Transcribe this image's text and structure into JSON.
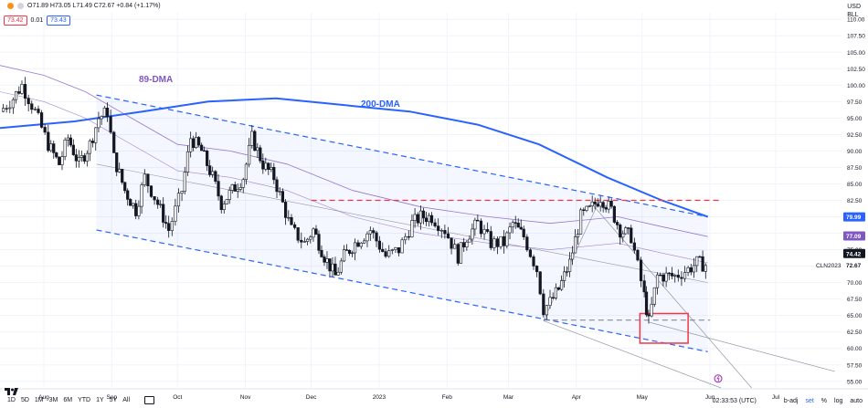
{
  "header": {
    "ohlc": "O71.89 H73.05 L71.49 C72.67 +0.84 (+1.17%)",
    "bid": "73.42",
    "spread": "0.01",
    "ask": "73.43",
    "currency": "USD",
    "unit": "BLL"
  },
  "labels": {
    "dma89": "89-DMA",
    "dma200": "200-DMA",
    "symbol": "CLN2023"
  },
  "bottom": {
    "timeframes": [
      "1D",
      "5D",
      "1M",
      "3M",
      "6M",
      "YTD",
      "1Y",
      "5Y",
      "All"
    ],
    "time": "02:33:53 (UTC)",
    "badj": "b-adj",
    "set": "set",
    "pct": "%",
    "log": "log",
    "auto": "auto"
  },
  "colors": {
    "up": "#26a69a",
    "down": "#ef5350",
    "candle": "#131722",
    "dma200": "#2962ff",
    "dma89": "#7e57c2",
    "channel": "#2962ff",
    "resistance": "#f23645",
    "box": "#f23645"
  },
  "chart_data": {
    "type": "line",
    "title": "",
    "xlabel": "",
    "ylabel": "",
    "ylim": [
      54,
      111
    ],
    "y_ticks": [
      55.0,
      57.5,
      60.0,
      62.5,
      65.0,
      67.5,
      70.0,
      72.5,
      75.0,
      77.5,
      80.0,
      82.5,
      85.0,
      87.5,
      90.0,
      92.5,
      95.0,
      97.5,
      100.0,
      102.5,
      105.0,
      107.5,
      110.0
    ],
    "y_tick_labels": [
      "55.00",
      "57.50",
      "60.00",
      "62.50",
      "65.00",
      "67.50",
      "70.00",
      "72.50",
      "75.00",
      "77.50",
      "80.00",
      "82.50",
      "85.00",
      "87.50",
      "90.00",
      "92.50",
      "95.00",
      "97.50",
      "100.00",
      "102.50",
      "105.00",
      "107.50",
      "110.00"
    ],
    "x_ticks": [
      "Aug",
      "Sep",
      "Oct",
      "Nov",
      "Dec",
      "2023",
      "Feb",
      "Mar",
      "Apr",
      "May",
      "Jun",
      "Jul"
    ],
    "x_tick_dates": [
      "2022-08-01",
      "2022-09-01",
      "2022-10-01",
      "2022-11-01",
      "2022-12-01",
      "2023-01-01",
      "2023-02-01",
      "2023-03-01",
      "2023-04-01",
      "2023-05-01",
      "2023-06-01",
      "2023-07-01"
    ],
    "x_range": [
      "2022-07-12",
      "2023-07-31"
    ],
    "price_labels": [
      {
        "value": 79.99,
        "text": "79.99",
        "color": "#2962ff"
      },
      {
        "value": 77.09,
        "text": "77.09",
        "color": "#7e57c2"
      },
      {
        "value": 74.42,
        "text": "74.42",
        "color": "#131722"
      },
      {
        "value": 72.67,
        "text": "72.67",
        "color": "#ffffff"
      }
    ],
    "close_series": {
      "name": "",
      "points": [
        [
          "2022-07-12",
          96
        ],
        [
          "2022-07-18",
          98
        ],
        [
          "2022-07-22",
          100
        ],
        [
          "2022-07-28",
          96
        ],
        [
          "2022-08-03",
          91
        ],
        [
          "2022-08-08",
          88
        ],
        [
          "2022-08-12",
          92
        ],
        [
          "2022-08-17",
          88
        ],
        [
          "2022-08-22",
          91
        ],
        [
          "2022-08-26",
          95
        ],
        [
          "2022-08-30",
          96
        ],
        [
          "2022-09-02",
          89
        ],
        [
          "2022-09-07",
          84
        ],
        [
          "2022-09-12",
          81
        ],
        [
          "2022-09-16",
          86
        ],
        [
          "2022-09-22",
          82
        ],
        [
          "2022-09-27",
          78
        ],
        [
          "2022-10-03",
          84
        ],
        [
          "2022-10-07",
          92
        ],
        [
          "2022-10-12",
          90
        ],
        [
          "2022-10-17",
          86
        ],
        [
          "2022-10-21",
          82
        ],
        [
          "2022-10-26",
          84
        ],
        [
          "2022-10-31",
          86
        ],
        [
          "2022-11-04",
          92
        ],
        [
          "2022-11-09",
          88
        ],
        [
          "2022-11-14",
          86
        ],
        [
          "2022-11-18",
          82
        ],
        [
          "2022-11-22",
          78
        ],
        [
          "2022-11-28",
          76
        ],
        [
          "2022-12-02",
          78
        ],
        [
          "2022-12-07",
          74
        ],
        [
          "2022-12-12",
          71
        ],
        [
          "2022-12-16",
          74
        ],
        [
          "2022-12-21",
          76
        ],
        [
          "2022-12-28",
          78
        ],
        [
          "2023-01-04",
          74
        ],
        [
          "2023-01-10",
          75
        ],
        [
          "2023-01-16",
          79
        ],
        [
          "2023-01-20",
          80
        ],
        [
          "2023-01-25",
          80
        ],
        [
          "2023-01-31",
          78
        ],
        [
          "2023-02-06",
          74
        ],
        [
          "2023-02-10",
          77
        ],
        [
          "2023-02-15",
          79
        ],
        [
          "2023-02-21",
          76
        ],
        [
          "2023-02-27",
          76
        ],
        [
          "2023-03-03",
          79
        ],
        [
          "2023-03-08",
          77
        ],
        [
          "2023-03-14",
          72
        ],
        [
          "2023-03-17",
          66
        ],
        [
          "2023-03-20",
          67
        ],
        [
          "2023-03-24",
          69
        ],
        [
          "2023-03-29",
          73
        ],
        [
          "2023-04-03",
          80
        ],
        [
          "2023-04-07",
          81
        ],
        [
          "2023-04-12",
          83
        ],
        [
          "2023-04-17",
          81
        ],
        [
          "2023-04-21",
          78
        ],
        [
          "2023-04-26",
          77
        ],
        [
          "2023-05-02",
          68
        ],
        [
          "2023-05-04",
          64
        ],
        [
          "2023-05-08",
          71
        ],
        [
          "2023-05-12",
          71
        ],
        [
          "2023-05-16",
          71
        ],
        [
          "2023-05-22",
          72
        ],
        [
          "2023-05-26",
          73
        ],
        [
          "2023-05-30",
          72.67
        ]
      ]
    },
    "series": [
      {
        "name": "200-DMA",
        "color": "#2962ff",
        "points": [
          [
            "2022-07-12",
            93.5
          ],
          [
            "2022-08-15",
            94.5
          ],
          [
            "2022-09-15",
            96
          ],
          [
            "2022-10-15",
            97.5
          ],
          [
            "2022-11-15",
            98
          ],
          [
            "2022-12-15",
            97
          ],
          [
            "2023-01-15",
            96
          ],
          [
            "2023-02-15",
            94
          ],
          [
            "2023-03-15",
            91
          ],
          [
            "2023-04-15",
            86
          ],
          [
            "2023-05-10",
            82.5
          ],
          [
            "2023-05-31",
            80
          ]
        ]
      },
      {
        "name": "89-DMA",
        "color": "#7e57c2",
        "points": [
          [
            "2022-07-12",
            103
          ],
          [
            "2022-08-01",
            101.5
          ],
          [
            "2022-08-20",
            99
          ],
          [
            "2022-09-10",
            95
          ],
          [
            "2022-10-01",
            91
          ],
          [
            "2022-10-25",
            90
          ],
          [
            "2022-11-20",
            88
          ],
          [
            "2022-12-20",
            84
          ],
          [
            "2023-01-20",
            81.5
          ],
          [
            "2023-02-20",
            80
          ],
          [
            "2023-03-20",
            79
          ],
          [
            "2023-04-20",
            80
          ],
          [
            "2023-05-10",
            78.5
          ],
          [
            "2023-05-31",
            77
          ]
        ]
      }
    ],
    "channel": {
      "upper": [
        [
          "2022-08-25",
          98.5
        ],
        [
          "2023-05-31",
          80
        ]
      ],
      "lower": [
        [
          "2022-08-25",
          78
        ],
        [
          "2023-05-31",
          59.5
        ]
      ],
      "mid": [
        [
          "2022-08-25",
          88
        ],
        [
          "2023-05-31",
          70
        ]
      ]
    },
    "resistance": {
      "value": 82.5,
      "from": "2022-12-01",
      "to": "2023-06-05"
    },
    "support": {
      "value": 64.3,
      "from": "2023-03-17",
      "to": "2023-06-01"
    },
    "box": {
      "x0": "2023-04-30",
      "x1": "2023-05-22",
      "y0": 60.8,
      "y1": 65.3
    }
  }
}
